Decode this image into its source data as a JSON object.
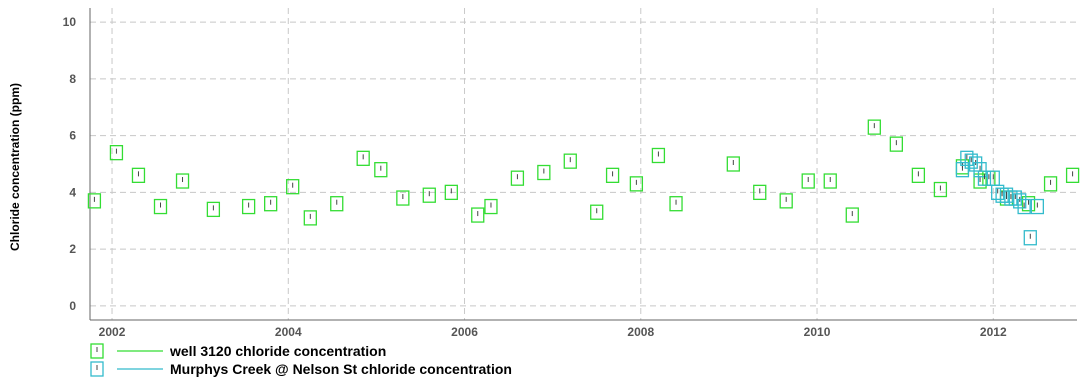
{
  "chart_data": {
    "type": "scatter",
    "ylabel": "Chloride concentration (ppm)",
    "xlabel": "",
    "xlim": [
      2001.75,
      2012.95
    ],
    "ylim": [
      -0.5,
      10.5
    ],
    "x_ticks": [
      "2002",
      "2004",
      "2006",
      "2008",
      "2010",
      "2012"
    ],
    "y_ticks": [
      "0",
      "2",
      "4",
      "6",
      "8",
      "10"
    ],
    "grid": true,
    "legend_position": "bottom-left",
    "series": [
      {
        "name": "well 3120 chloride concentration",
        "color": "#33dd33",
        "marker": "open-square",
        "points": [
          [
            2001.8,
            3.7
          ],
          [
            2002.05,
            5.4
          ],
          [
            2002.3,
            4.6
          ],
          [
            2002.55,
            3.5
          ],
          [
            2002.8,
            4.4
          ],
          [
            2003.15,
            3.4
          ],
          [
            2003.55,
            3.5
          ],
          [
            2003.8,
            3.6
          ],
          [
            2004.05,
            4.2
          ],
          [
            2004.25,
            3.1
          ],
          [
            2004.55,
            3.6
          ],
          [
            2004.85,
            5.2
          ],
          [
            2005.05,
            4.8
          ],
          [
            2005.3,
            3.8
          ],
          [
            2005.6,
            3.9
          ],
          [
            2005.85,
            4.0
          ],
          [
            2006.15,
            3.2
          ],
          [
            2006.3,
            3.5
          ],
          [
            2006.6,
            4.5
          ],
          [
            2006.9,
            4.7
          ],
          [
            2007.2,
            5.1
          ],
          [
            2007.5,
            3.3
          ],
          [
            2007.68,
            4.6
          ],
          [
            2007.95,
            4.3
          ],
          [
            2008.2,
            5.3
          ],
          [
            2008.4,
            3.6
          ],
          [
            2009.05,
            5.0
          ],
          [
            2009.35,
            4.0
          ],
          [
            2009.65,
            3.7
          ],
          [
            2009.9,
            4.4
          ],
          [
            2010.15,
            4.4
          ],
          [
            2010.4,
            3.2
          ],
          [
            2010.65,
            6.3
          ],
          [
            2010.9,
            5.7
          ],
          [
            2011.15,
            4.6
          ],
          [
            2011.4,
            4.1
          ],
          [
            2011.65,
            4.9
          ],
          [
            2011.85,
            4.4
          ],
          [
            2011.95,
            4.5
          ],
          [
            2012.15,
            3.8
          ],
          [
            2012.4,
            3.6
          ],
          [
            2012.65,
            4.3
          ],
          [
            2012.9,
            4.6
          ]
        ]
      },
      {
        "name": "Murphys Creek @ Nelson St chloride concentration",
        "color": "#33bbcc",
        "marker": "open-square",
        "points": [
          [
            2011.65,
            4.8
          ],
          [
            2011.7,
            5.2
          ],
          [
            2011.75,
            5.1
          ],
          [
            2011.8,
            5.0
          ],
          [
            2011.85,
            4.8
          ],
          [
            2011.9,
            4.5
          ],
          [
            2012.0,
            4.5
          ],
          [
            2012.05,
            4.0
          ],
          [
            2012.1,
            3.9
          ],
          [
            2012.15,
            3.9
          ],
          [
            2012.2,
            3.8
          ],
          [
            2012.25,
            3.8
          ],
          [
            2012.3,
            3.7
          ],
          [
            2012.35,
            3.5
          ],
          [
            2012.42,
            2.4
          ],
          [
            2012.5,
            3.5
          ]
        ]
      }
    ]
  }
}
